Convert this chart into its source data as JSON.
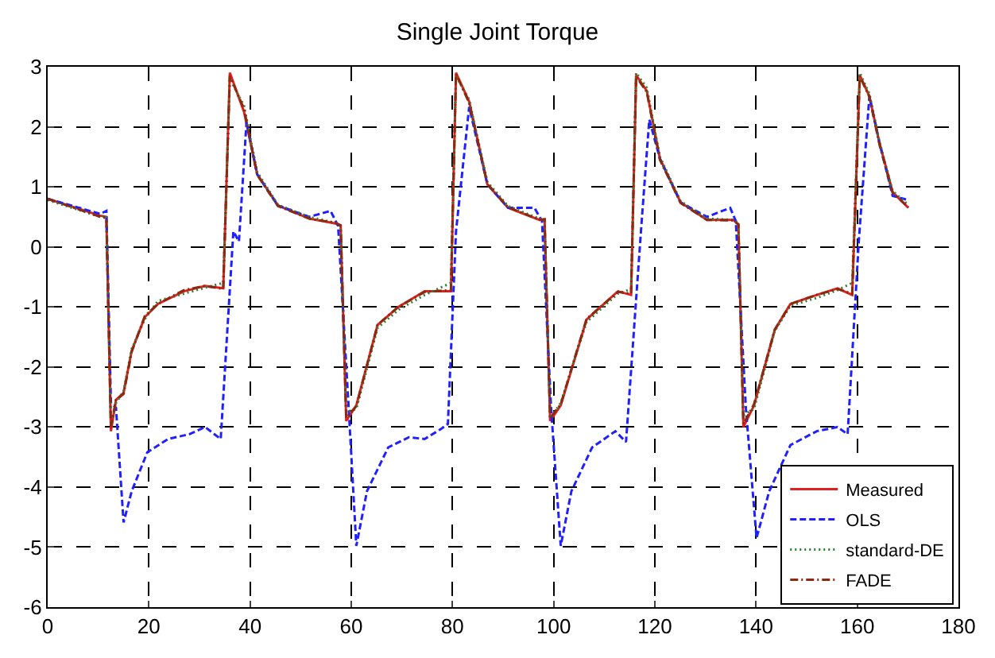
{
  "chart_data": {
    "type": "line",
    "title": "Single Joint Torque",
    "xlim": [
      0,
      180
    ],
    "xticks": [
      0,
      20,
      40,
      60,
      80,
      100,
      120,
      140,
      160,
      180
    ],
    "ylim": [
      -6,
      3
    ],
    "yticks": [
      -6,
      -5,
      -4,
      -3,
      -2,
      -1,
      0,
      1,
      2,
      3
    ],
    "grid": true,
    "legend": "bottom right",
    "marker": "none",
    "series": [
      {
        "name": "Measured",
        "color": "#e02020",
        "line_style": "solid",
        "x": [
          0,
          10.4,
          11.6,
          12.5,
          13.5,
          15.0,
          16.6,
          19.2,
          21.8,
          26.9,
          31.1,
          34.7,
          36.0,
          38.8,
          41.4,
          45.5,
          51.7,
          56.9,
          57.9,
          59.0,
          61.0,
          65.2,
          69.3,
          74.5,
          79.7,
          80.7,
          83.3,
          86.9,
          91.0,
          97.2,
          98.2,
          99.3,
          101.4,
          106.5,
          112.7,
          115.3,
          116.3,
          118.4,
          121.0,
          125.1,
          130.3,
          135.5,
          136.5,
          137.5,
          139.6,
          143.7,
          146.8,
          152.0,
          156.1,
          159.0,
          160.5,
          162.4,
          164.4,
          167.0,
          170.1
        ],
        "values": [
          0.8,
          0.52,
          0.5,
          -3.07,
          -2.55,
          -2.43,
          -1.73,
          -1.17,
          -0.95,
          -0.74,
          -0.65,
          -0.69,
          2.9,
          2.25,
          1.21,
          0.69,
          0.47,
          0.39,
          0.35,
          -2.9,
          -2.64,
          -1.3,
          -1.0,
          -0.74,
          -0.74,
          2.9,
          2.42,
          1.04,
          0.65,
          0.45,
          0.46,
          -2.9,
          -2.64,
          -1.21,
          -0.74,
          -0.8,
          2.86,
          2.6,
          1.47,
          0.74,
          0.45,
          0.45,
          0.37,
          -3.0,
          -2.64,
          -1.38,
          -0.95,
          -0.8,
          -0.69,
          -0.8,
          2.86,
          2.51,
          1.73,
          0.91,
          0.65
        ]
      },
      {
        "name": "OLS",
        "color": "#2020ff",
        "line_style": "dashed",
        "x": [
          0,
          10.4,
          11.6,
          12.5,
          13.5,
          15.0,
          16.6,
          19.7,
          23.8,
          28.0,
          31.1,
          34.2,
          36.7,
          37.8,
          39.3,
          41.4,
          45.5,
          51.7,
          55.9,
          57.4,
          59.5,
          61.0,
          63.1,
          67.3,
          71.4,
          74.5,
          77.6,
          79.1,
          80.7,
          83.3,
          86.9,
          91.0,
          96.2,
          97.7,
          99.5,
          101.4,
          103.5,
          107.6,
          112.2,
          114.3,
          117.4,
          118.9,
          121.0,
          125.1,
          130.3,
          134.9,
          136.0,
          138.0,
          140.1,
          142.6,
          146.8,
          152.0,
          156.1,
          158.1,
          160.3,
          162.4,
          164.4,
          167.0,
          170.1
        ],
        "values": [
          0.8,
          0.55,
          0.6,
          -2.6,
          -2.68,
          -4.59,
          -4.07,
          -3.42,
          -3.2,
          -3.12,
          -3.0,
          -3.2,
          0.26,
          0.09,
          2.08,
          1.21,
          0.69,
          0.5,
          0.6,
          0.35,
          -2.7,
          -4.98,
          -4.07,
          -3.34,
          -3.17,
          -3.2,
          -3.04,
          -2.95,
          0.26,
          2.33,
          1.04,
          0.65,
          0.65,
          0.43,
          -2.7,
          -4.98,
          -4.07,
          -3.34,
          -3.07,
          -3.25,
          0.43,
          2.12,
          1.47,
          0.74,
          0.5,
          0.65,
          0.43,
          -2.7,
          -4.85,
          -4.07,
          -3.3,
          -3.07,
          -3.0,
          -3.12,
          0.09,
          2.51,
          1.73,
          0.85,
          0.78
        ]
      },
      {
        "name": "standard-DE",
        "color": "#2e7d32",
        "line_style": "dotted",
        "x": [
          0,
          10.4,
          11.6,
          12.5,
          13.5,
          15.0,
          16.6,
          19.2,
          21.8,
          26.9,
          31.1,
          34.7,
          36.0,
          38.8,
          41.4,
          45.5,
          51.7,
          56.9,
          57.9,
          59.0,
          61.0,
          65.2,
          69.3,
          74.5,
          79.7,
          80.7,
          83.3,
          86.9,
          91.0,
          97.2,
          98.2,
          99.3,
          101.4,
          106.5,
          112.7,
          115.3,
          116.3,
          118.4,
          121.0,
          125.1,
          130.3,
          135.5,
          136.5,
          137.5,
          139.6,
          143.7,
          146.8,
          152.0,
          156.1,
          159.0,
          160.5,
          162.4,
          164.4,
          167.0,
          170.1
        ],
        "values": [
          0.78,
          0.5,
          0.52,
          -2.95,
          -2.6,
          -2.4,
          -1.7,
          -1.2,
          -0.9,
          -0.78,
          -0.68,
          -0.6,
          2.8,
          2.35,
          1.25,
          0.7,
          0.5,
          0.4,
          0.35,
          -2.75,
          -2.7,
          -1.35,
          -1.05,
          -0.8,
          -0.6,
          2.85,
          2.45,
          1.08,
          0.68,
          0.47,
          0.45,
          -2.85,
          -2.6,
          -1.25,
          -0.78,
          -0.7,
          2.9,
          2.65,
          1.5,
          0.76,
          0.47,
          0.45,
          0.4,
          -2.8,
          -2.7,
          -1.4,
          -0.98,
          -0.85,
          -0.72,
          -0.6,
          2.9,
          2.55,
          1.75,
          0.93,
          0.7
        ]
      },
      {
        "name": "FADE",
        "color": "#8b2a10",
        "line_style": "dashdot",
        "x": [
          0,
          10.4,
          11.6,
          12.5,
          13.5,
          15.0,
          16.6,
          19.2,
          21.8,
          26.9,
          31.1,
          34.7,
          36.0,
          38.8,
          41.4,
          45.5,
          51.7,
          56.9,
          57.9,
          59.0,
          61.0,
          65.2,
          69.3,
          74.5,
          79.7,
          80.7,
          83.3,
          86.9,
          91.0,
          97.2,
          98.2,
          99.3,
          101.4,
          106.5,
          112.7,
          115.3,
          116.3,
          118.4,
          121.0,
          125.1,
          130.3,
          135.5,
          136.5,
          137.5,
          139.6,
          143.7,
          146.8,
          152.0,
          156.1,
          159.0,
          160.5,
          162.4,
          164.4,
          167.0,
          170.1
        ],
        "values": [
          0.8,
          0.5,
          0.48,
          -3.0,
          -2.55,
          -2.45,
          -1.75,
          -1.15,
          -0.95,
          -0.72,
          -0.65,
          -0.7,
          2.85,
          2.3,
          1.2,
          0.68,
          0.47,
          0.4,
          0.36,
          -2.85,
          -2.65,
          -1.3,
          -1.0,
          -0.75,
          -0.72,
          2.88,
          2.4,
          1.05,
          0.66,
          0.45,
          0.46,
          -2.85,
          -2.62,
          -1.2,
          -0.75,
          -0.78,
          2.84,
          2.58,
          1.45,
          0.73,
          0.45,
          0.44,
          0.38,
          -2.95,
          -2.62,
          -1.38,
          -0.95,
          -0.8,
          -0.7,
          -0.78,
          2.84,
          2.5,
          1.7,
          0.9,
          0.66
        ]
      }
    ]
  }
}
